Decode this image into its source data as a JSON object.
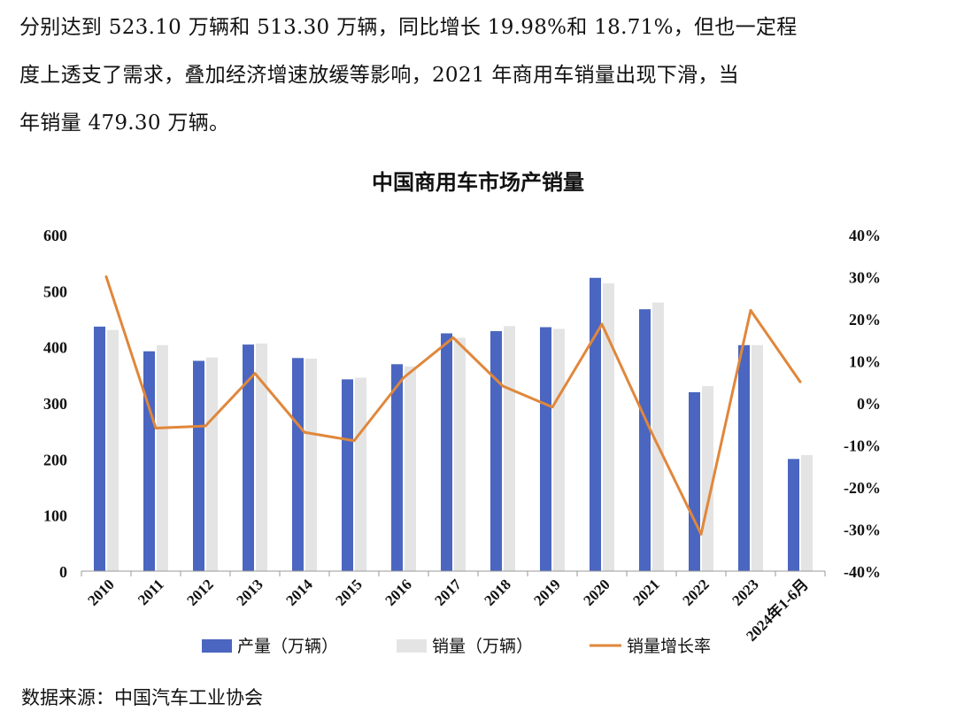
{
  "paragraph": {
    "lines": [
      "分别达到 523.10 万辆和 513.30 万辆，同比增长 19.98%和 18.71%，但也一定程",
      "度上透支了需求，叠加经济增速放缓等影响，2021 年商用车销量出现下滑，当",
      "年销量 479.30 万辆。"
    ]
  },
  "chart_data": {
    "type": "bar",
    "title": "中国商用车市场产销量",
    "categories": [
      "2010",
      "2011",
      "2012",
      "2013",
      "2014",
      "2015",
      "2016",
      "2017",
      "2018",
      "2019",
      "2020",
      "2021",
      "2022",
      "2023",
      "2024年1-6月"
    ],
    "series": [
      {
        "name": "产量（万辆）",
        "type": "bar",
        "axis": "left",
        "color": "#4a66c0",
        "values": [
          436,
          392,
          375,
          404,
          380,
          342,
          369,
          424,
          428,
          435,
          523,
          467,
          319,
          403,
          200
        ]
      },
      {
        "name": "销量（万辆）",
        "type": "bar",
        "axis": "left",
        "color": "#e4e4e4",
        "values": [
          430,
          403,
          381,
          406,
          379,
          345,
          365,
          416,
          437,
          432,
          513,
          479,
          330,
          403,
          207
        ]
      },
      {
        "name": "销量增长率",
        "type": "line",
        "axis": "right",
        "color": "#e0873b",
        "values": [
          30,
          -6,
          -5.5,
          7,
          -7,
          -9,
          6,
          15.5,
          4,
          -1,
          18.7,
          -7,
          -31.2,
          22,
          5
        ]
      }
    ],
    "ylim_left": [
      0,
      600
    ],
    "yticks_left": [
      "0",
      "100",
      "200",
      "300",
      "400",
      "500",
      "600"
    ],
    "ylim_right": [
      -40,
      40
    ],
    "yticks_right": [
      "-40%",
      "-30%",
      "-20%",
      "-10%",
      "0%",
      "10%",
      "20%",
      "30%",
      "40%"
    ],
    "legend_position": "bottom",
    "grid": false
  },
  "source": "数据来源：中国汽车工业协会"
}
